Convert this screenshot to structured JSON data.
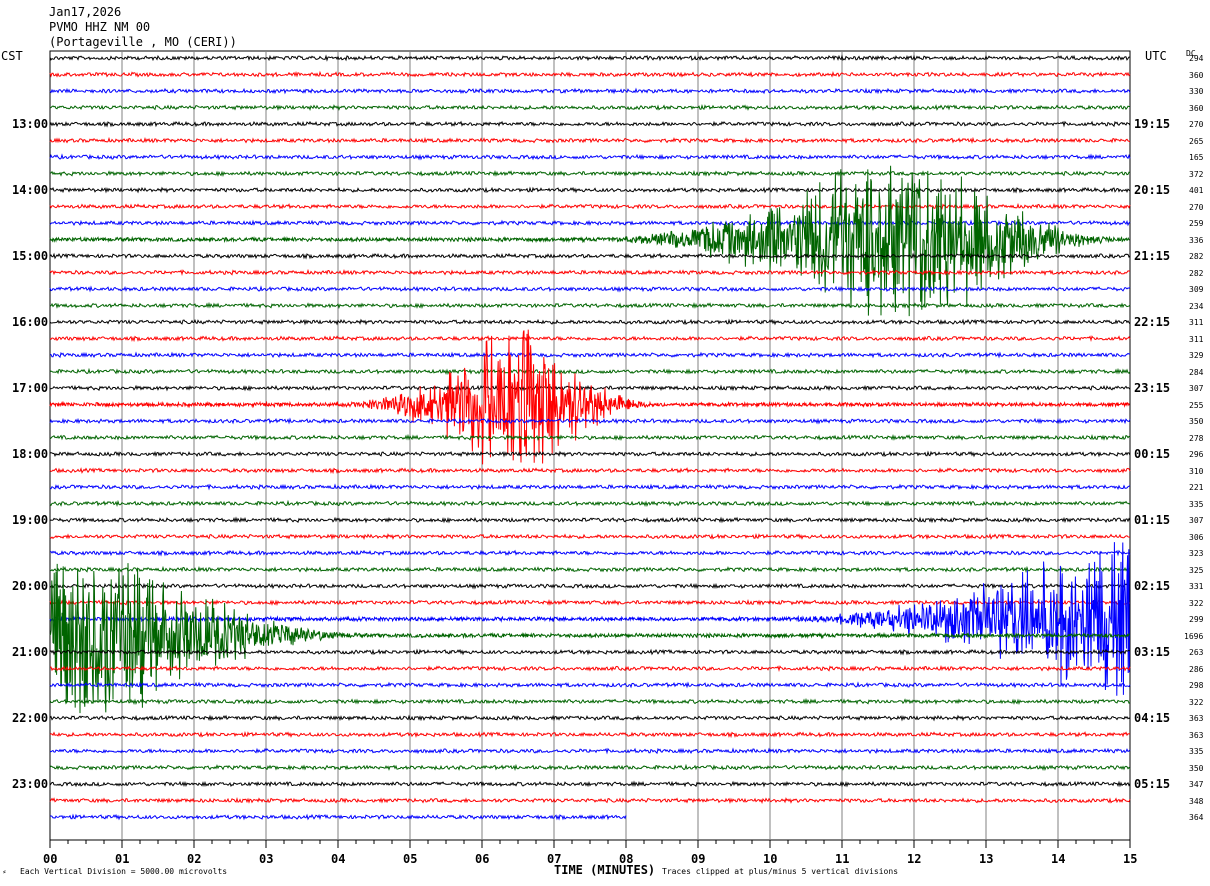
{
  "header": {
    "date": "Jan17,2026",
    "station": "PVMO HHZ NM 00",
    "location": "(Portageville , MO (CERI))"
  },
  "left_tz": "CST",
  "right_tz": "UTC",
  "dc_label": "DC",
  "footer": {
    "scale_note": "Each Vertical Division = 5000.00 microvolts",
    "axis_title": "TIME (MINUTES)",
    "clip_note": "Traces clipped at plus/minus 5 vertical divisions"
  },
  "colors": {
    "black": "#000000",
    "red": "#ff0000",
    "blue": "#0000ff",
    "green": "#006400",
    "grid": "#808080"
  },
  "chart_data": {
    "type": "line",
    "title": "PVMO HHZ NM 00 helicorder",
    "xlabel": "TIME (MINUTES)",
    "xlim": [
      0,
      15
    ],
    "x_ticks": [
      "00",
      "01",
      "02",
      "03",
      "04",
      "05",
      "06",
      "07",
      "08",
      "09",
      "10",
      "11",
      "12",
      "13",
      "14",
      "15"
    ],
    "left_hour_labels": [
      "13:00",
      "14:00",
      "15:00",
      "16:00",
      "17:00",
      "18:00",
      "19:00",
      "20:00",
      "21:00",
      "22:00",
      "23:00"
    ],
    "right_hour_labels": [
      "19:15",
      "20:15",
      "21:15",
      "22:15",
      "23:15",
      "00:15",
      "01:15",
      "02:15",
      "03:15",
      "04:15",
      "05:15"
    ],
    "trace_colors": [
      "black",
      "red",
      "blue",
      "green"
    ],
    "dc_offsets": [
      294,
      360,
      330,
      360,
      270,
      265,
      165,
      372,
      401,
      270,
      259,
      336,
      282,
      282,
      309,
      234,
      311,
      311,
      329,
      284,
      307,
      255,
      350,
      278,
      296,
      310,
      221,
      335,
      307,
      306,
      323,
      325,
      331,
      322,
      299,
      1696,
      263,
      286,
      298,
      322,
      363,
      363,
      335,
      350,
      347,
      348,
      364
    ],
    "last_trace_end_minute": 8.0,
    "events": [
      {
        "trace": 11,
        "start": 7.5,
        "peak": 12.0,
        "end": 15.0,
        "amplitude": 6
      },
      {
        "trace": 21,
        "start": 4.0,
        "peak": 6.5,
        "end": 8.5,
        "amplitude": 5
      },
      {
        "trace": 34,
        "start": 10.0,
        "peak": 15.0,
        "end": 15.0,
        "amplitude": 5
      },
      {
        "trace": 35,
        "start": 0.0,
        "peak": 0.4,
        "end": 4.5,
        "amplitude": 6
      }
    ]
  }
}
